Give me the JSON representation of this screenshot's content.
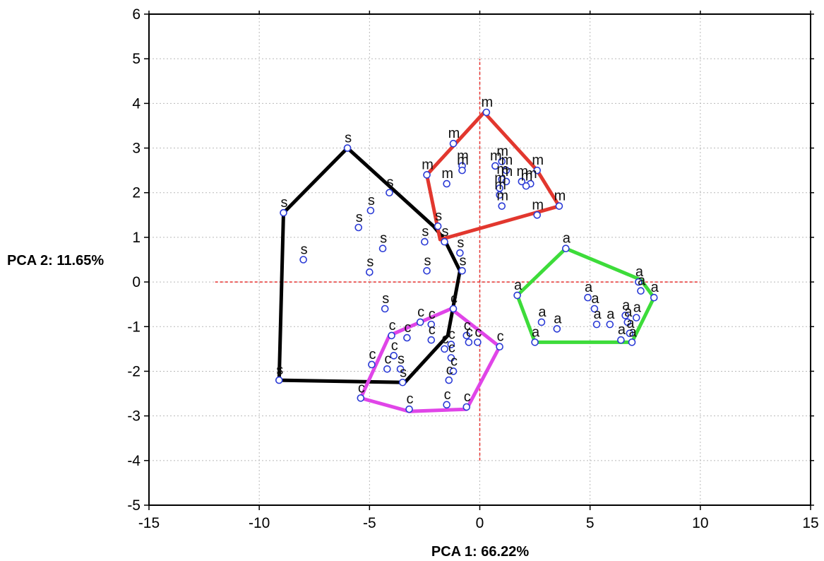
{
  "chart_data": {
    "type": "scatter",
    "xlabel": "PCA 1: 66.22%",
    "ylabel": "PCA 2: 11.65%",
    "xlim": [
      -15,
      15
    ],
    "ylim": [
      -5,
      6
    ],
    "xticks": [
      -15,
      -10,
      -5,
      0,
      5,
      10,
      15
    ],
    "yticks": [
      -5,
      -4,
      -3,
      -2,
      -1,
      0,
      1,
      2,
      3,
      4,
      5,
      6
    ],
    "x_tick_labels": [
      "-15",
      "-10",
      "-5",
      "0",
      "5",
      "10",
      "15"
    ],
    "y_tick_labels": [
      "-5",
      "-4",
      "-3",
      "-2",
      "-1",
      "0",
      "1",
      "2",
      "3",
      "4",
      "5",
      "6"
    ],
    "grid": true,
    "reference_lines": {
      "color": "#e8312f",
      "x_range": [
        -12,
        10
      ],
      "y_range": [
        -4,
        5
      ]
    },
    "marker_color": "#2b3bd6",
    "series": [
      {
        "label": "s",
        "hull_color": "#000000",
        "points": [
          [
            -6.0,
            3.0
          ],
          [
            -8.9,
            1.55
          ],
          [
            -4.1,
            2.0
          ],
          [
            -4.95,
            1.6
          ],
          [
            -5.5,
            1.22
          ],
          [
            -8.0,
            0.5
          ],
          [
            -4.4,
            0.75
          ],
          [
            -5.0,
            0.22
          ],
          [
            -1.9,
            1.25
          ],
          [
            -1.6,
            0.9
          ],
          [
            -2.5,
            0.9
          ],
          [
            -2.4,
            0.25
          ],
          [
            -0.9,
            0.65
          ],
          [
            -0.8,
            0.25
          ],
          [
            -4.3,
            -0.6
          ],
          [
            -9.1,
            -2.2
          ],
          [
            -3.5,
            -2.25
          ],
          [
            -3.6,
            -1.95
          ]
        ],
        "point_labels": [
          "s",
          "s",
          "s",
          "s",
          "s",
          "s",
          "s",
          "s",
          "s",
          "s",
          "s",
          "s",
          "s",
          "s",
          "s",
          "s",
          "s",
          "s"
        ],
        "hull": [
          [
            -6.0,
            3.0
          ],
          [
            -2.1,
            1.25
          ],
          [
            -1.6,
            0.95
          ],
          [
            -0.9,
            0.25
          ],
          [
            -1.45,
            -1.2
          ],
          [
            -3.4,
            -2.25
          ],
          [
            -9.1,
            -2.2
          ],
          [
            -8.9,
            1.55
          ]
        ]
      },
      {
        "label": "m",
        "hull_color": "#e2372e",
        "points": [
          [
            0.3,
            3.8
          ],
          [
            -1.2,
            3.1
          ],
          [
            -0.8,
            2.6
          ],
          [
            -0.8,
            2.5
          ],
          [
            -2.4,
            2.4
          ],
          [
            -1.5,
            2.2
          ],
          [
            0.7,
            2.6
          ],
          [
            1.0,
            2.7
          ],
          [
            1.2,
            2.5
          ],
          [
            1.0,
            2.3
          ],
          [
            1.2,
            2.25
          ],
          [
            0.9,
            2.1
          ],
          [
            2.6,
            2.5
          ],
          [
            1.9,
            2.25
          ],
          [
            2.3,
            2.2
          ],
          [
            2.1,
            2.15
          ],
          [
            0.9,
            1.95
          ],
          [
            1.0,
            1.7
          ],
          [
            3.6,
            1.7
          ],
          [
            2.6,
            1.5
          ]
        ],
        "point_labels": [
          "m",
          "m",
          "m",
          "m",
          "m",
          "m",
          "m",
          "m",
          "m",
          "m",
          "m",
          "m",
          "m",
          "m",
          "m",
          "m",
          "m",
          "m",
          "m",
          "m"
        ],
        "hull": [
          [
            0.2,
            3.8
          ],
          [
            2.6,
            2.5
          ],
          [
            3.6,
            1.7
          ],
          [
            -1.8,
            0.95
          ],
          [
            -2.4,
            2.4
          ]
        ]
      },
      {
        "label": "a",
        "hull_color": "#3ddc3a",
        "points": [
          [
            3.9,
            0.75
          ],
          [
            1.7,
            -0.3
          ],
          [
            4.9,
            -0.35
          ],
          [
            5.2,
            -0.6
          ],
          [
            5.3,
            -0.95
          ],
          [
            5.9,
            -0.95
          ],
          [
            6.6,
            -0.75
          ],
          [
            6.7,
            -0.9
          ],
          [
            7.1,
            -0.8
          ],
          [
            7.3,
            -0.2
          ],
          [
            7.2,
            0.0
          ],
          [
            7.9,
            -0.35
          ],
          [
            6.4,
            -1.3
          ],
          [
            6.8,
            -1.15
          ],
          [
            6.9,
            -1.35
          ],
          [
            2.5,
            -1.35
          ],
          [
            2.8,
            -0.9
          ],
          [
            3.5,
            -1.05
          ]
        ],
        "point_labels": [
          "a",
          "a",
          "a",
          "a",
          "a",
          "a",
          "a",
          "a",
          "a",
          "a",
          "a",
          "a",
          "a",
          "a",
          "a",
          "a",
          "a",
          "a"
        ],
        "hull": [
          [
            3.9,
            0.75
          ],
          [
            7.3,
            0.05
          ],
          [
            7.9,
            -0.35
          ],
          [
            6.9,
            -1.35
          ],
          [
            2.5,
            -1.35
          ],
          [
            1.7,
            -0.3
          ]
        ]
      },
      {
        "label": "c",
        "hull_color": "#e045e8",
        "points": [
          [
            -1.2,
            -0.6
          ],
          [
            -4.0,
            -1.2
          ],
          [
            -3.3,
            -1.25
          ],
          [
            -2.7,
            -0.9
          ],
          [
            -2.2,
            -0.95
          ],
          [
            -2.2,
            -1.3
          ],
          [
            -1.6,
            -1.5
          ],
          [
            -1.3,
            -1.4
          ],
          [
            -0.6,
            -1.2
          ],
          [
            -0.5,
            -1.35
          ],
          [
            -0.1,
            -1.35
          ],
          [
            0.9,
            -1.45
          ],
          [
            -4.9,
            -1.85
          ],
          [
            -3.9,
            -1.65
          ],
          [
            -4.2,
            -1.95
          ],
          [
            -1.3,
            -1.7
          ],
          [
            -1.2,
            -2.0
          ],
          [
            -1.4,
            -2.2
          ],
          [
            -1.5,
            -2.75
          ],
          [
            -0.6,
            -2.8
          ],
          [
            -5.4,
            -2.6
          ],
          [
            -3.2,
            -2.85
          ]
        ],
        "point_labels": [
          "c",
          "c",
          "c",
          "c",
          "c",
          "c",
          "c",
          "c",
          "c",
          "c",
          "c",
          "c",
          "c",
          "c",
          "c",
          "c",
          "c",
          "c",
          "c",
          "c",
          "c",
          "c"
        ],
        "hull": [
          [
            -1.3,
            -0.6
          ],
          [
            0.0,
            -1.1
          ],
          [
            0.9,
            -1.45
          ],
          [
            -0.6,
            -2.85
          ],
          [
            -3.2,
            -2.9
          ],
          [
            -5.4,
            -2.6
          ],
          [
            -4.1,
            -1.2
          ]
        ]
      }
    ]
  }
}
